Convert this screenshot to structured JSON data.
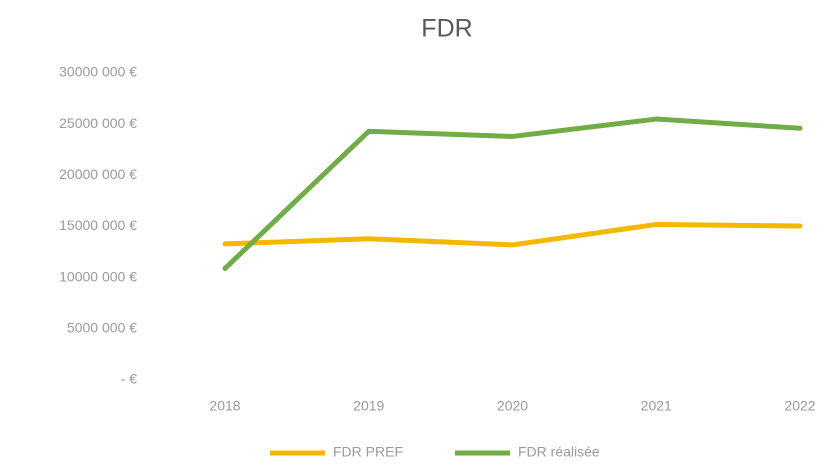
{
  "chart_data": {
    "type": "line",
    "title": "FDR",
    "categories": [
      "2018",
      "2019",
      "2020",
      "2021",
      "2022"
    ],
    "series": [
      {
        "name": "FDR PREF",
        "color": "#f5b800",
        "values": [
          13300000,
          13800000,
          13200000,
          15200000,
          15050000
        ]
      },
      {
        "name": "FDR  réalisée",
        "color": "#70ad47",
        "values": [
          10900000,
          24300000,
          23800000,
          25500000,
          24600000
        ]
      }
    ],
    "ylim": [
      0,
      30000000
    ],
    "yticks": [
      {
        "value": 0,
        "label": "- €"
      },
      {
        "value": 5000000,
        "label": "5000 000 €"
      },
      {
        "value": 10000000,
        "label": "10000 000 €"
      },
      {
        "value": 15000000,
        "label": "15000 000 €"
      },
      {
        "value": 20000000,
        "label": "20000 000 €"
      },
      {
        "value": 25000000,
        "label": "25000 000 €"
      },
      {
        "value": 30000000,
        "label": "30000 000 €"
      }
    ],
    "grid": false,
    "legend": "bottom"
  }
}
